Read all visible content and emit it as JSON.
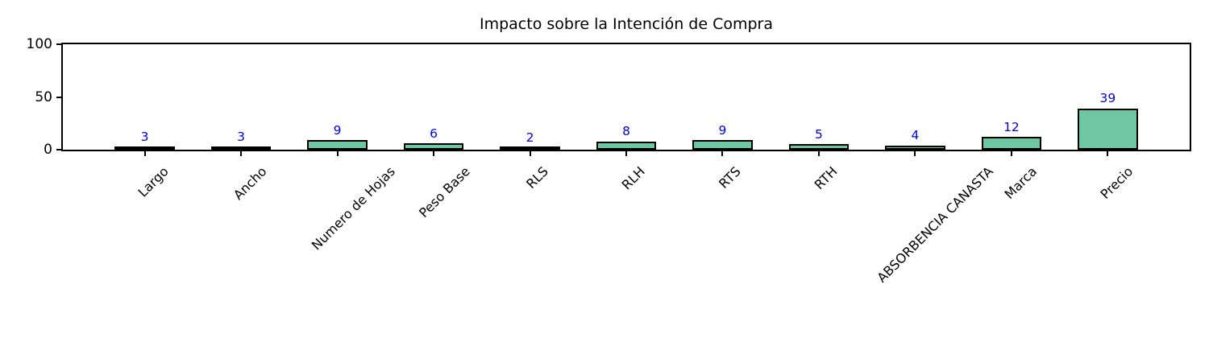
{
  "chart_data": {
    "type": "bar",
    "title": "Impacto sobre la Intención de Compra",
    "categories": [
      "Largo",
      "Ancho",
      "Numero de Hojas",
      "Peso Base",
      "RLS",
      "RLH",
      "RTS",
      "RTH",
      "ABSORBENCIA CANASTA",
      "Marca",
      "Precio"
    ],
    "values": [
      3,
      3,
      9,
      6,
      2,
      8,
      9,
      5,
      4,
      12,
      39
    ],
    "xlabel": "",
    "ylabel": "",
    "ylim": [
      0,
      100
    ],
    "yticks": [
      0,
      50,
      100
    ],
    "grid": false,
    "legend": null,
    "value_labels": [
      3,
      3,
      9,
      6,
      2,
      8,
      9,
      5,
      4,
      12,
      39
    ],
    "x_tick_rotation_deg": 45
  },
  "colors": {
    "bar_fill": "#6ec6a2",
    "bar_edge": "#000000",
    "value_label": "#0000ee",
    "axis": "#000000",
    "title_text": "#000000",
    "background": "#ffffff"
  }
}
